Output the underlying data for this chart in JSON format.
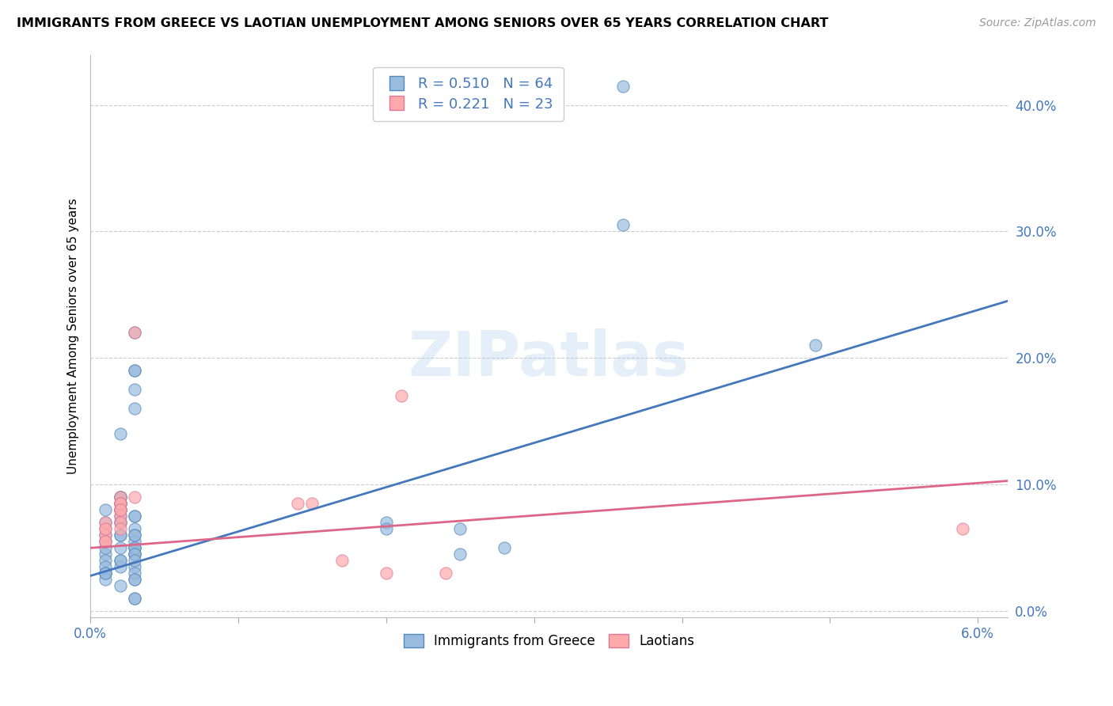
{
  "title": "IMMIGRANTS FROM GREECE VS LAOTIAN UNEMPLOYMENT AMONG SENIORS OVER 65 YEARS CORRELATION CHART",
  "source": "Source: ZipAtlas.com",
  "ylabel": "Unemployment Among Seniors over 65 years",
  "xlim": [
    0.0,
    0.062
  ],
  "ylim": [
    -0.005,
    0.44
  ],
  "xtick_positions": [
    0.0,
    0.01,
    0.02,
    0.03,
    0.04,
    0.05,
    0.06
  ],
  "xtick_labels": [
    "0.0%",
    "",
    "",
    "",
    "",
    "",
    "6.0%"
  ],
  "yticks_right": [
    0.0,
    0.1,
    0.2,
    0.3,
    0.4
  ],
  "legend_blue_R": "0.510",
  "legend_blue_N": "64",
  "legend_pink_R": "0.221",
  "legend_pink_N": "23",
  "legend_label_blue": "Immigrants from Greece",
  "legend_label_pink": "Laotians",
  "blue_scatter_color": "#99BBDD",
  "blue_edge_color": "#5588BB",
  "pink_scatter_color": "#FFAAAA",
  "pink_edge_color": "#DD7799",
  "blue_line_color": "#4477BB",
  "pink_line_color": "#DD6688",
  "watermark": "ZIPatlas",
  "blue_scatter": [
    [
      0.001,
      0.06
    ],
    [
      0.001,
      0.055
    ],
    [
      0.001,
      0.045
    ],
    [
      0.001,
      0.07
    ],
    [
      0.001,
      0.08
    ],
    [
      0.002,
      0.06
    ],
    [
      0.002,
      0.08
    ],
    [
      0.002,
      0.06
    ],
    [
      0.002,
      0.075
    ],
    [
      0.002,
      0.07
    ],
    [
      0.002,
      0.05
    ],
    [
      0.001,
      0.05
    ],
    [
      0.001,
      0.04
    ],
    [
      0.002,
      0.04
    ],
    [
      0.002,
      0.09
    ],
    [
      0.002,
      0.085
    ],
    [
      0.002,
      0.09
    ],
    [
      0.002,
      0.085
    ],
    [
      0.002,
      0.085
    ],
    [
      0.002,
      0.08
    ],
    [
      0.002,
      0.02
    ],
    [
      0.003,
      0.025
    ],
    [
      0.002,
      0.08
    ],
    [
      0.002,
      0.07
    ],
    [
      0.002,
      0.14
    ],
    [
      0.002,
      0.09
    ],
    [
      0.003,
      0.075
    ],
    [
      0.003,
      0.075
    ],
    [
      0.003,
      0.065
    ],
    [
      0.003,
      0.06
    ],
    [
      0.003,
      0.05
    ],
    [
      0.003,
      0.05
    ],
    [
      0.003,
      0.045
    ],
    [
      0.003,
      0.045
    ],
    [
      0.003,
      0.055
    ],
    [
      0.003,
      0.06
    ],
    [
      0.003,
      0.175
    ],
    [
      0.003,
      0.19
    ],
    [
      0.003,
      0.19
    ],
    [
      0.003,
      0.22
    ],
    [
      0.003,
      0.16
    ],
    [
      0.036,
      0.415
    ],
    [
      0.036,
      0.305
    ],
    [
      0.049,
      0.21
    ],
    [
      0.003,
      0.01
    ],
    [
      0.003,
      0.01
    ],
    [
      0.003,
      0.035
    ],
    [
      0.02,
      0.07
    ],
    [
      0.02,
      0.065
    ],
    [
      0.025,
      0.045
    ],
    [
      0.025,
      0.065
    ],
    [
      0.028,
      0.05
    ],
    [
      0.001,
      0.03
    ],
    [
      0.001,
      0.035
    ],
    [
      0.001,
      0.03
    ],
    [
      0.001,
      0.025
    ],
    [
      0.003,
      0.05
    ],
    [
      0.003,
      0.045
    ],
    [
      0.003,
      0.03
    ],
    [
      0.003,
      0.025
    ],
    [
      0.001,
      0.03
    ],
    [
      0.002,
      0.035
    ],
    [
      0.002,
      0.04
    ],
    [
      0.003,
      0.04
    ]
  ],
  "pink_scatter": [
    [
      0.001,
      0.055
    ],
    [
      0.001,
      0.065
    ],
    [
      0.001,
      0.06
    ],
    [
      0.002,
      0.09
    ],
    [
      0.002,
      0.085
    ],
    [
      0.001,
      0.055
    ],
    [
      0.001,
      0.07
    ],
    [
      0.001,
      0.065
    ],
    [
      0.002,
      0.08
    ],
    [
      0.002,
      0.075
    ],
    [
      0.003,
      0.22
    ],
    [
      0.021,
      0.17
    ],
    [
      0.003,
      0.09
    ],
    [
      0.002,
      0.07
    ],
    [
      0.002,
      0.065
    ],
    [
      0.002,
      0.085
    ],
    [
      0.002,
      0.08
    ],
    [
      0.014,
      0.085
    ],
    [
      0.015,
      0.085
    ],
    [
      0.017,
      0.04
    ],
    [
      0.02,
      0.03
    ],
    [
      0.024,
      0.03
    ],
    [
      0.059,
      0.065
    ]
  ],
  "blue_line_x": [
    0.0,
    0.062
  ],
  "blue_line_y": [
    0.028,
    0.245
  ],
  "pink_line_x": [
    0.0,
    0.062
  ],
  "pink_line_y": [
    0.05,
    0.103
  ]
}
